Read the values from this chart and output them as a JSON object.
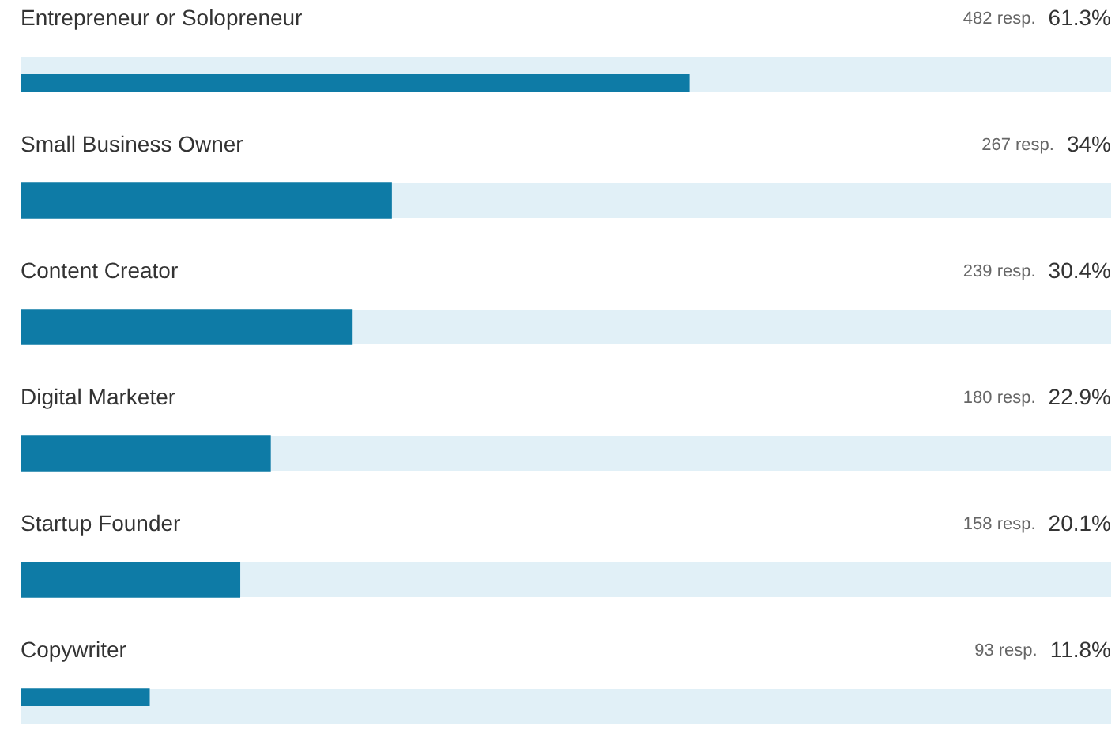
{
  "chart_data": {
    "type": "bar",
    "orientation": "horizontal",
    "categories": [
      "Entrepreneur or Solopreneur",
      "Small Business Owner",
      "Content Creator",
      "Digital Marketer",
      "Startup Founder",
      "Copywriter"
    ],
    "values": [
      61.3,
      34,
      30.4,
      22.9,
      20.1,
      11.8
    ],
    "value_labels": [
      "61.3%",
      "34%",
      "30.4%",
      "22.9%",
      "20.1%",
      "11.8%"
    ],
    "color": "#0e7ba6",
    "xlim": [
      0,
      100
    ],
    "legend": false,
    "bands": [
      {
        "axis": "x",
        "from": 0,
        "to": 100,
        "color": "#e1f0f7"
      }
    ],
    "annotations": [
      "482 resp.",
      "267 resp.",
      "239 resp.",
      "180 resp.",
      "158 resp.",
      "93 resp."
    ]
  }
}
